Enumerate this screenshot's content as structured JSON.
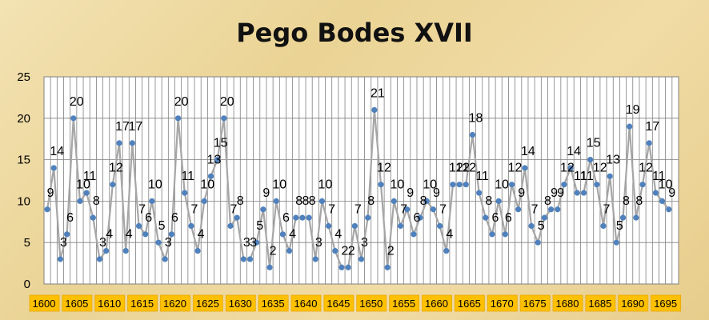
{
  "chart_data": {
    "type": "line",
    "title": "Pego Bodes XVII",
    "xlabel": "",
    "ylabel": "",
    "ylim": [
      0,
      25
    ],
    "yticks": [
      0,
      5,
      10,
      15,
      20,
      25
    ],
    "xticks": [
      "1600",
      "1605",
      "1610",
      "1615",
      "1620",
      "1625",
      "1630",
      "1635",
      "1640",
      "1645",
      "1650",
      "1655",
      "1660",
      "1665",
      "1670",
      "1675",
      "1680",
      "1685",
      "1690",
      "1695"
    ],
    "grid": true,
    "legend": "none",
    "line_color": "#a6a6a6",
    "marker_color": "#4f81bd",
    "grid_color": "#7f7f7f",
    "plot_background": "#ffffff",
    "tick_background": "#ffc000",
    "series": [
      {
        "x": [
          1600,
          1601,
          1602,
          1603,
          1604,
          1605,
          1606,
          1607,
          1608,
          1609,
          1610,
          1611,
          1612,
          1613,
          1614,
          1615,
          1616,
          1617,
          1618,
          1619,
          1620,
          1621,
          1622,
          1623,
          1624,
          1625,
          1626,
          1627,
          1628,
          1629,
          1630,
          1631,
          1632,
          1633,
          1634,
          1635,
          1636,
          1637,
          1638,
          1639,
          1640,
          1641,
          1642,
          1643,
          1644,
          1645,
          1646,
          1647,
          1648,
          1649,
          1650,
          1651,
          1652,
          1653,
          1654,
          1655,
          1656,
          1657,
          1658,
          1659,
          1660,
          1661,
          1662,
          1663,
          1664,
          1665,
          1666,
          1667,
          1668,
          1669,
          1670,
          1671,
          1672,
          1673,
          1674,
          1675,
          1676,
          1677,
          1678,
          1679,
          1680,
          1681,
          1682,
          1683,
          1684,
          1685,
          1686,
          1687,
          1688,
          1689,
          1690,
          1691,
          1692,
          1693,
          1694,
          1695,
          1696
        ],
        "values": [
          9,
          14,
          3,
          6,
          20,
          10,
          11,
          8,
          3,
          4,
          12,
          17,
          4,
          17,
          7,
          6,
          10,
          5,
          3,
          6,
          20,
          11,
          7,
          4,
          10,
          13,
          15,
          20,
          7,
          8,
          3,
          3,
          5,
          9,
          2,
          10,
          6,
          4,
          8,
          8,
          8,
          3,
          10,
          7,
          4,
          2,
          2,
          7,
          3,
          8,
          21,
          12,
          2,
          10,
          7,
          9,
          6,
          8,
          10,
          9,
          7,
          4,
          12,
          12,
          12,
          18,
          11,
          8,
          6,
          10,
          6,
          12,
          9,
          14,
          7,
          5,
          8,
          9,
          9,
          12,
          14,
          11,
          11,
          15,
          12,
          7,
          13,
          5,
          8,
          19,
          8,
          12,
          17,
          11,
          10,
          9,
          null
        ]
      }
    ]
  }
}
